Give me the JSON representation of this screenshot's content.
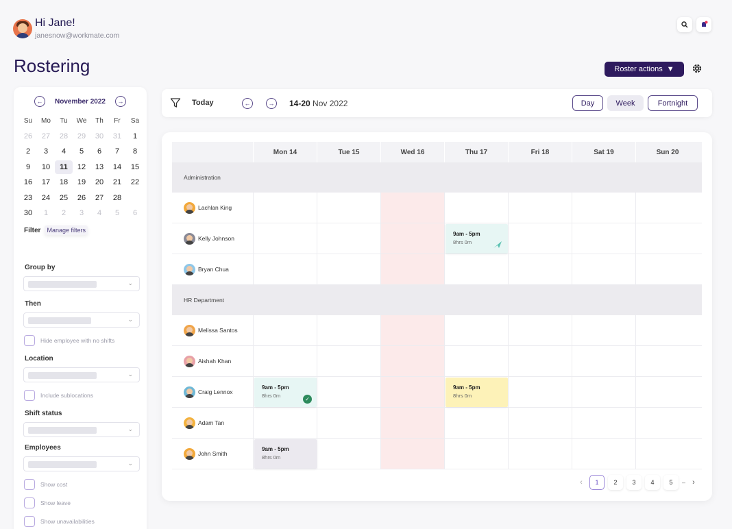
{
  "user": {
    "greeting": "Hi Jane!",
    "email": "janesnow@workmate.com"
  },
  "page": {
    "title": "Rostering",
    "roster_actions_label": "Roster actions"
  },
  "calendar": {
    "month_label": "November 2022",
    "weekdays": [
      "Su",
      "Mo",
      "Tu",
      "We",
      "Th",
      "Fr",
      "Sa"
    ],
    "weeks": [
      [
        "26",
        "27",
        "28",
        "29",
        "30",
        "31",
        "1"
      ],
      [
        "2",
        "3",
        "4",
        "5",
        "6",
        "7",
        "8"
      ],
      [
        "9",
        "10",
        "11",
        "12",
        "13",
        "14",
        "15"
      ],
      [
        "16",
        "17",
        "18",
        "19",
        "20",
        "21",
        "22"
      ],
      [
        "23",
        "24",
        "25",
        "26",
        "27",
        "28",
        ""
      ],
      [
        "30",
        "1",
        "2",
        "3",
        "4",
        "5",
        "6"
      ]
    ],
    "selected": "11"
  },
  "filters": {
    "filter_label": "Filter",
    "manage_filters_label": "Manage filters",
    "group_by_label": "Group by",
    "then_label": "Then",
    "hide_no_shifts_label": "Hide employee with no shifts",
    "location_label": "Location",
    "include_sublocations_label": "Include sublocations",
    "shift_status_label": "Shift status",
    "employees_label": "Employees",
    "show_cost_label": "Show cost",
    "show_leave_label": "Show leave",
    "show_unavailabilities_label": "Show unavailabilities"
  },
  "toolbar": {
    "today_label": "Today",
    "range_days": "14-20",
    "range_rest": "Nov 2022",
    "views": [
      "Day",
      "Week",
      "Fortnight"
    ],
    "active_view": "Week"
  },
  "roster": {
    "days": [
      "Mon 14",
      "Tue 15",
      "Wed 16",
      "Thu 17",
      "Fri 18",
      "Sat 19",
      "Sun 20"
    ],
    "sections": [
      {
        "name": "Administration",
        "employees": [
          {
            "name": "Lachlan King",
            "avatar_color": "#f2a93b",
            "shifts": []
          },
          {
            "name": "Kelly Johnson",
            "avatar_color": "#8a8a96",
            "shifts": [
              {
                "day": 3,
                "time": "9am - 5pm",
                "duration": "8hrs 0m",
                "color": "teal",
                "status_icon": "send-icon"
              }
            ]
          },
          {
            "name": "Bryan Chua",
            "avatar_color": "#8fc7e8",
            "shifts": []
          }
        ]
      },
      {
        "name": "HR Department",
        "employees": [
          {
            "name": "Melissa Santos",
            "avatar_color": "#f0a54a",
            "shifts": []
          },
          {
            "name": "Aishah Khan",
            "avatar_color": "#e8a1a8",
            "shifts": []
          },
          {
            "name": "Craig Lennox",
            "avatar_color": "#6fb8d6",
            "shifts": [
              {
                "day": 0,
                "time": "9am - 5pm",
                "duration": "8hrs 0m",
                "color": "teal",
                "status_icon": "check-circle-icon"
              },
              {
                "day": 3,
                "time": "9am - 5pm",
                "duration": "8hrs 0m",
                "color": "yellow",
                "status_icon": ""
              }
            ]
          },
          {
            "name": "Adam Tan",
            "avatar_color": "#f3b23e",
            "shifts": []
          },
          {
            "name": "John Smith",
            "avatar_color": "#f2a93b",
            "shifts": [
              {
                "day": 0,
                "time": "9am - 5pm",
                "duration": "8hrs 0m",
                "color": "grey",
                "status_icon": ""
              }
            ]
          }
        ]
      }
    ]
  },
  "pagination": {
    "pages": [
      "1",
      "2",
      "3",
      "4",
      "5"
    ],
    "current": "1",
    "ellipsis": "–"
  },
  "colors": {
    "primary": "#2e1a5e",
    "weekend_highlight": "#fceaea",
    "accent": "#9a86d8"
  }
}
